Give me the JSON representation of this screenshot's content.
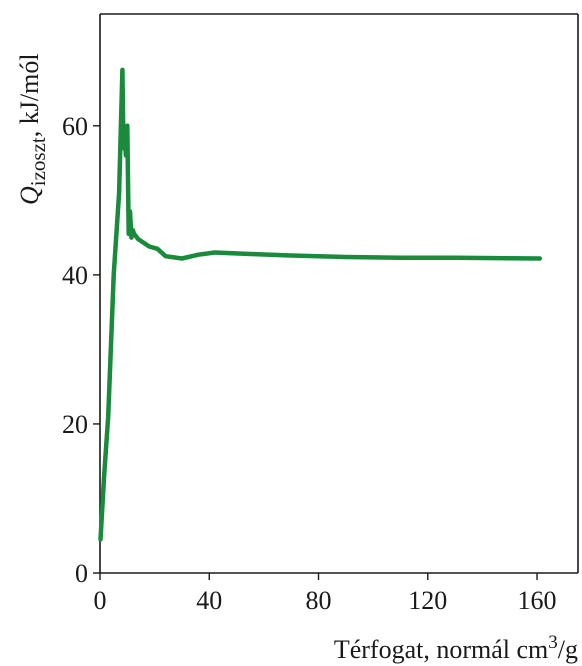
{
  "chart_data": {
    "type": "line",
    "title": "",
    "xlabel": {
      "main": "Térfogat, normál cm",
      "sup": "3",
      "tail": "/g"
    },
    "ylabel": {
      "symbol": "Q",
      "sub": "izoszt",
      "tail": ", kJ/mól"
    },
    "xlim": [
      0,
      175
    ],
    "ylim": [
      0,
      75
    ],
    "xticks": [
      0,
      40,
      80,
      120,
      160
    ],
    "yticks": [
      0,
      20,
      40,
      60
    ],
    "grid": false,
    "series": [
      {
        "color": "#1a8a3c",
        "x": [
          0.2,
          1.5,
          3,
          5,
          7,
          8.2,
          8.6,
          9.0,
          9.5,
          10.0,
          10.5,
          11.0,
          11.5,
          12.0,
          12.5,
          14,
          18,
          21,
          24,
          30,
          36,
          42,
          55,
          70,
          90,
          110,
          130,
          161
        ],
        "y": [
          4.5,
          13,
          21,
          40,
          51,
          67.5,
          57,
          59,
          56,
          60,
          45.5,
          48.5,
          45,
          46,
          45.5,
          44.8,
          43.8,
          43.5,
          42.5,
          42.2,
          42.7,
          43,
          42.8,
          42.6,
          42.4,
          42.3,
          42.3,
          42.2
        ]
      }
    ]
  }
}
